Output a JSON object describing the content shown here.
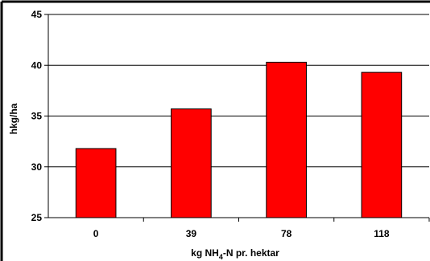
{
  "chart_data": {
    "type": "bar",
    "categories": [
      "0",
      "39",
      "78",
      "118"
    ],
    "values": [
      31.8,
      35.7,
      40.3,
      39.3
    ],
    "ylabel": "hkg/ha",
    "xlabel_parts": {
      "prefix": "kg NH",
      "subscript": "4",
      "suffix": "-N pr. hektar"
    },
    "ylim": [
      25,
      45
    ],
    "yticks": [
      25,
      30,
      35,
      40,
      45
    ],
    "grid": true,
    "bar_color": "#ff0000",
    "bar_edge_color": "#000000"
  }
}
